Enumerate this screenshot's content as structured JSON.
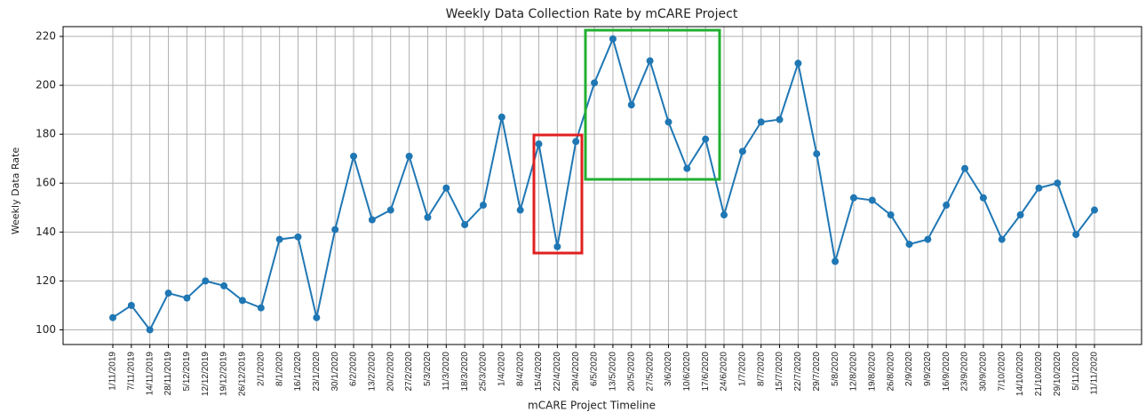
{
  "chart_data": {
    "type": "line",
    "title": "Weekly Data Collection Rate by mCARE Project",
    "x_label": "mCARE Project Timeline",
    "y_label": "Weekly Data Rate",
    "categories": [
      "1/11/2019",
      "7/11/2019",
      "14/11/2019",
      "28/11/2019",
      "5/12/2019",
      "12/12/2019",
      "19/12/2019",
      "26/12/2019",
      "2/1/2020",
      "8/1/2020",
      "16/1/2020",
      "23/1/2020",
      "30/1/2020",
      "6/2/2020",
      "13/2/2020",
      "20/2/2020",
      "27/2/2020",
      "5/3/2020",
      "11/3/2020",
      "18/3/2020",
      "25/3/2020",
      "1/4/2020",
      "8/4/2020",
      "15/4/2020",
      "22/4/2020",
      "29/4/2020",
      "6/5/2020",
      "13/5/2020",
      "20/5/2020",
      "27/5/2020",
      "3/6/2020",
      "10/6/2020",
      "17/6/2020",
      "24/6/2020",
      "1/7/2020",
      "8/7/2020",
      "15/7/2020",
      "22/7/2020",
      "29/7/2020",
      "5/8/2020",
      "12/8/2020",
      "19/8/2020",
      "26/8/2020",
      "2/9/2020",
      "9/9/2020",
      "16/9/2020",
      "23/9/2020",
      "30/9/2020",
      "7/10/2020",
      "14/10/2020",
      "21/10/2020",
      "29/10/2020",
      "5/11/2020",
      "11/11/2020"
    ],
    "values": [
      105,
      110,
      100,
      115,
      113,
      120,
      118,
      112,
      109,
      137,
      138,
      105,
      141,
      171,
      145,
      149,
      171,
      146,
      158,
      143,
      151,
      187,
      149,
      176,
      134,
      177,
      201,
      219,
      192,
      210,
      185,
      166,
      178,
      147,
      173,
      185,
      186,
      209,
      172,
      128,
      154,
      153,
      147,
      135,
      137,
      151,
      166,
      154,
      137,
      147,
      158,
      160,
      139,
      149
    ],
    "color": "#1f77b4",
    "ylim": [
      94,
      224
    ],
    "yticks": [
      100,
      120,
      140,
      160,
      180,
      200,
      220
    ],
    "grid": true
  }
}
